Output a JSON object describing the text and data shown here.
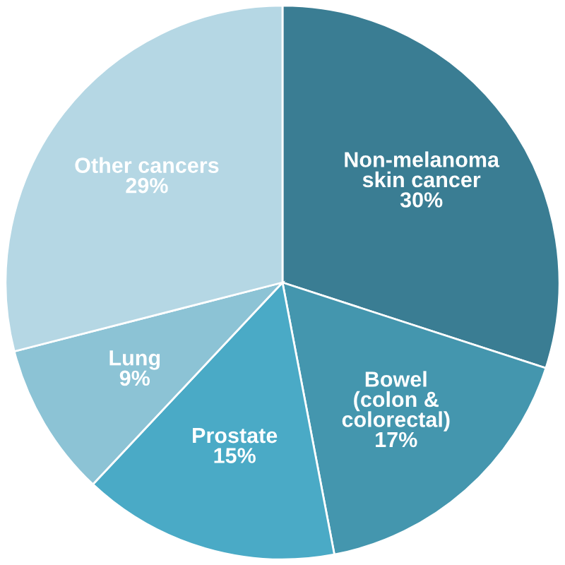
{
  "chart_data": {
    "type": "pie",
    "categories": [
      "Non-melanoma\nskin cancer",
      "Bowel\n(colon &\ncolorectal)",
      "Prostate",
      "Lung",
      "Other cancers"
    ],
    "values": [
      30,
      17,
      15,
      9,
      29
    ],
    "value_labels": [
      "30%",
      "17%",
      "15%",
      "9%",
      "29%"
    ],
    "colors": [
      "#3a7d93",
      "#4496ae",
      "#4aaac6",
      "#8cc3d5",
      "#b5d7e4"
    ]
  }
}
